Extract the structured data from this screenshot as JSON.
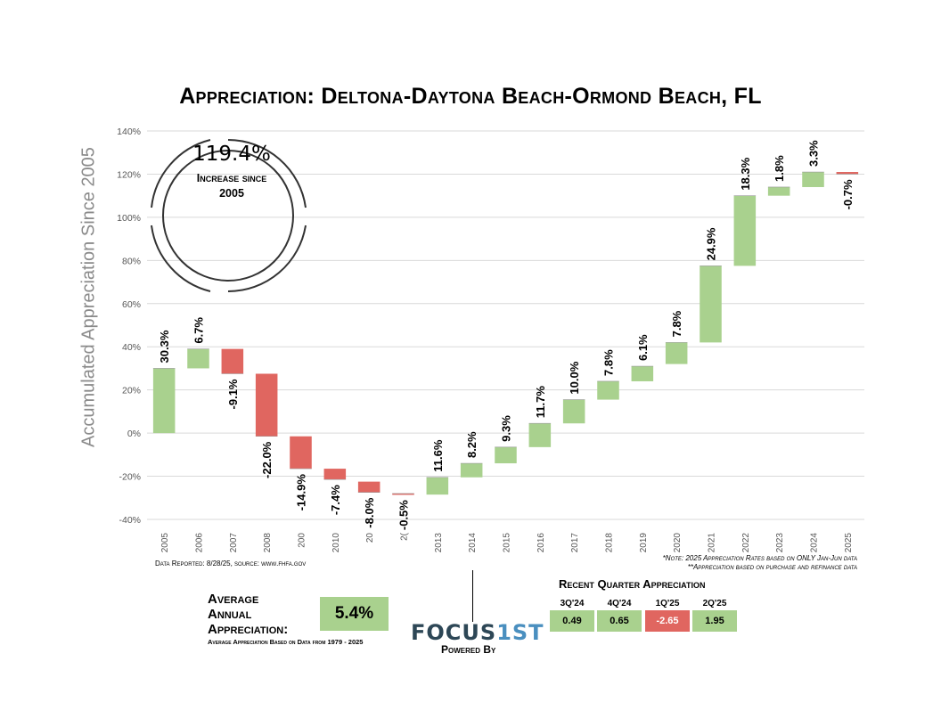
{
  "title": "Appreciation: Deltona-Daytona Beach-Ormond Beach, FL",
  "callout": {
    "value": "119.4%",
    "text_line1": "Increase since",
    "text_line2": "2005"
  },
  "notes": {
    "data_reported": "Data Reported: 8/28/25, source: www.fhfa.gov",
    "note1": "*Note: 2025 Appreciation Rates based on ONLY Jan-Jun data",
    "note2": "**Appreciation based on purchase and refinance data"
  },
  "average": {
    "label_line1": "Average",
    "label_line2": "Annual",
    "label_line3": "Appreciation:",
    "value": "5.4%",
    "subtext": "Average Appreciation Based on Data from 1979 - 2025"
  },
  "brand": {
    "logo_left": "FOCUS",
    "logo_right": "1ST",
    "powered_by": "Powered By"
  },
  "recent_quarters": {
    "title": "Recent Quarter Appreciation",
    "items": [
      {
        "quarter": "3Q'24",
        "value": "0.49",
        "positive": true
      },
      {
        "quarter": "4Q'24",
        "value": "0.65",
        "positive": true
      },
      {
        "quarter": "1Q'25",
        "value": "-2.65",
        "positive": false
      },
      {
        "quarter": "2Q'25",
        "value": "1.95",
        "positive": true
      }
    ]
  },
  "colors": {
    "positive": "#a9d18e",
    "negative": "#e06660",
    "grid": "#d9d9d9",
    "axis_text": "#8a8a8a"
  },
  "chart_data": {
    "type": "waterfall",
    "ylabel": "Accumulated Appreciation Since 2005",
    "ylim": [
      -40,
      140
    ],
    "yticks": [
      -40,
      -20,
      0,
      20,
      40,
      60,
      80,
      100,
      120,
      140
    ],
    "ytick_labels": [
      "-40%",
      "-20%",
      "0%",
      "20%",
      "40%",
      "60%",
      "80%",
      "100%",
      "120%",
      "140%"
    ],
    "grid": true,
    "categories": [
      "2005",
      "2006",
      "2007",
      "2008",
      "200",
      "2010",
      "20",
      "2(",
      "2013",
      "2014",
      "2015",
      "2016",
      "2017",
      "2018",
      "2019",
      "2020",
      "2021",
      "2022",
      "2023",
      "2024",
      "2025"
    ],
    "changes": [
      30.3,
      6.7,
      -9.1,
      -22.0,
      -14.9,
      -7.4,
      -8.0,
      -0.5,
      11.6,
      8.2,
      9.3,
      11.7,
      10.0,
      7.8,
      6.1,
      7.8,
      24.9,
      18.3,
      1.8,
      3.3,
      -0.7
    ],
    "labels": [
      "30.3%",
      "6.7%",
      "-9.1%",
      "-22.0%",
      "-14.9%",
      "-7.4%",
      "-8.0%",
      "-0.5%",
      "11.6%",
      "8.2%",
      "9.3%",
      "11.7%",
      "10.0%",
      "7.8%",
      "6.1%",
      "7.8%",
      "24.9%",
      "18.3%",
      "1.8%",
      "3.3%",
      "-0.7%"
    ],
    "starts": [
      0,
      30,
      39,
      27.5,
      -1.5,
      -16.5,
      -22.5,
      -28.5,
      -28.5,
      -20.5,
      -14,
      -6.5,
      4.5,
      15.5,
      24,
      32,
      42,
      77.5,
      110,
      114,
      121
    ],
    "ends": [
      30,
      39,
      27.5,
      -1.5,
      -16.5,
      -21.5,
      -27.5,
      -28,
      -20.5,
      -14,
      -6.5,
      4.5,
      15.5,
      24,
      31,
      42,
      77.5,
      110,
      114,
      121,
      120
    ]
  }
}
